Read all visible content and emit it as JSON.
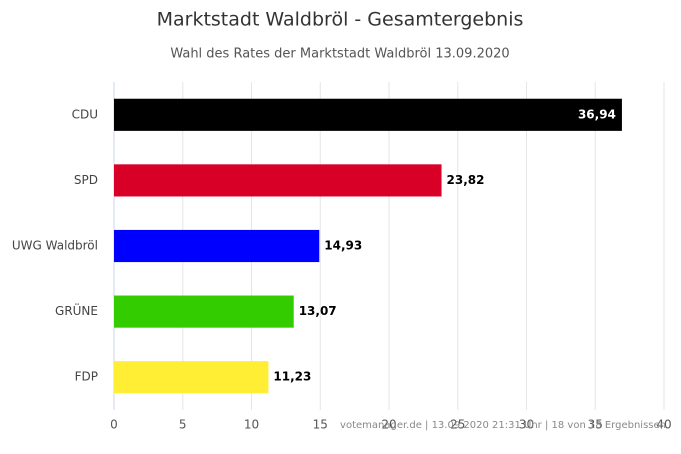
{
  "chart_data": {
    "type": "bar",
    "orientation": "horizontal",
    "title": "Marktstadt Waldbröl - Gesamtergebnis",
    "subtitle": "Wahl des Rates der Marktstadt Waldbröl 13.09.2020",
    "categories": [
      "CDU",
      "SPD",
      "UWG Waldbröl",
      "GRÜNE",
      "FDP"
    ],
    "values": [
      36.94,
      23.82,
      14.93,
      13.07,
      11.23
    ],
    "value_labels": [
      "36,94",
      "23,82",
      "14,93",
      "13,07",
      "11,23"
    ],
    "colors": [
      "#000000",
      "#d80027",
      "#0000ff",
      "#33cc00",
      "#ffee33"
    ],
    "xlim": [
      0,
      40
    ],
    "xticks": [
      0,
      5,
      10,
      15,
      20,
      25,
      30,
      35,
      40
    ],
    "grid": true,
    "credits": "votemanager.de | 13.09.2020 21:31 Uhr | 18 von 18 Ergebnissen"
  }
}
